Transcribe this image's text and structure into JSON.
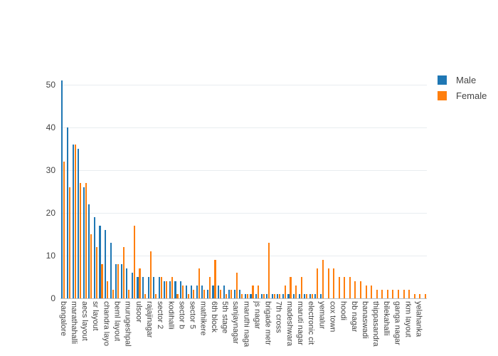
{
  "legend": {
    "items": [
      {
        "label": "Male",
        "color": "#1f77b4"
      },
      {
        "label": "Female",
        "color": "#ff7f0e"
      }
    ]
  },
  "y_axis": {
    "ticks": [
      0,
      10,
      20,
      30,
      40,
      50
    ]
  },
  "chart_data": {
    "type": "bar",
    "title": "",
    "xlabel": "",
    "ylabel": "",
    "ylim": [
      0,
      55
    ],
    "grid": true,
    "legend_position": "top-right",
    "bar_colors": {
      "Male": "#1f77b4",
      "Female": "#ff7f0e"
    },
    "layout_note": "x tick labels are rendered rotated 90deg; only every other category shows a label (empty strings = unlabeled intermediate categories)",
    "categories": [
      "bangalore",
      "",
      "marathahalli",
      "",
      "aecs layout",
      "",
      "sr layout",
      "",
      "chandra layo",
      "",
      "beml layout",
      "",
      "murugeshpal",
      "",
      "ulsoor",
      "",
      "rajajinagar",
      "",
      "sector 2",
      "",
      "kodihalli",
      "",
      "sector b",
      "",
      "sector 5",
      "",
      "mathikere",
      "",
      "6th block",
      "",
      "5th stage",
      "",
      "sanjaynagar",
      "",
      "maruthi naga",
      "",
      "js nagar",
      "",
      "brigade metr",
      "",
      "7th cross",
      "",
      "madeshwara",
      "",
      "maruti nagar",
      "",
      "electronic cit",
      "",
      "yemalur",
      "",
      "cox town",
      "",
      "hoodi",
      "",
      "bb nagar",
      "",
      "banaswadi",
      "",
      "thippasandra",
      "",
      "bilekahalli",
      "",
      "ganga nagar",
      "",
      "rkm layout",
      "",
      "yelahanka",
      ""
    ],
    "series": [
      {
        "name": "Male",
        "color": "#1f77b4",
        "values": [
          51,
          40,
          36,
          35,
          26,
          22,
          19,
          17,
          16,
          13,
          8,
          8,
          7,
          6,
          5,
          5,
          5,
          5,
          5,
          4,
          4,
          4,
          4,
          3,
          3,
          3,
          3,
          2,
          3,
          3,
          3,
          2,
          2,
          2,
          1,
          1,
          1,
          1,
          1,
          1,
          1,
          1,
          1,
          1,
          1,
          1,
          1,
          1,
          1,
          0,
          0,
          0,
          0,
          0,
          0,
          0,
          0,
          0,
          0,
          0,
          0,
          0,
          0,
          0,
          0,
          0,
          0,
          0
        ]
      },
      {
        "name": "Female",
        "color": "#ff7f0e",
        "values": [
          32,
          26,
          36,
          27,
          27,
          15,
          12,
          8,
          4,
          2,
          8,
          12,
          2,
          17,
          7,
          1,
          11,
          1,
          5,
          4,
          5,
          1,
          3,
          1,
          2,
          7,
          2,
          5,
          9,
          2,
          1,
          2,
          6,
          1,
          1,
          3,
          3,
          1,
          13,
          1,
          1,
          3,
          5,
          3,
          5,
          1,
          1,
          7,
          9,
          7,
          7,
          5,
          5,
          5,
          4,
          4,
          3,
          3,
          2,
          2,
          2,
          2,
          2,
          2,
          2,
          1,
          1,
          1
        ]
      }
    ]
  }
}
